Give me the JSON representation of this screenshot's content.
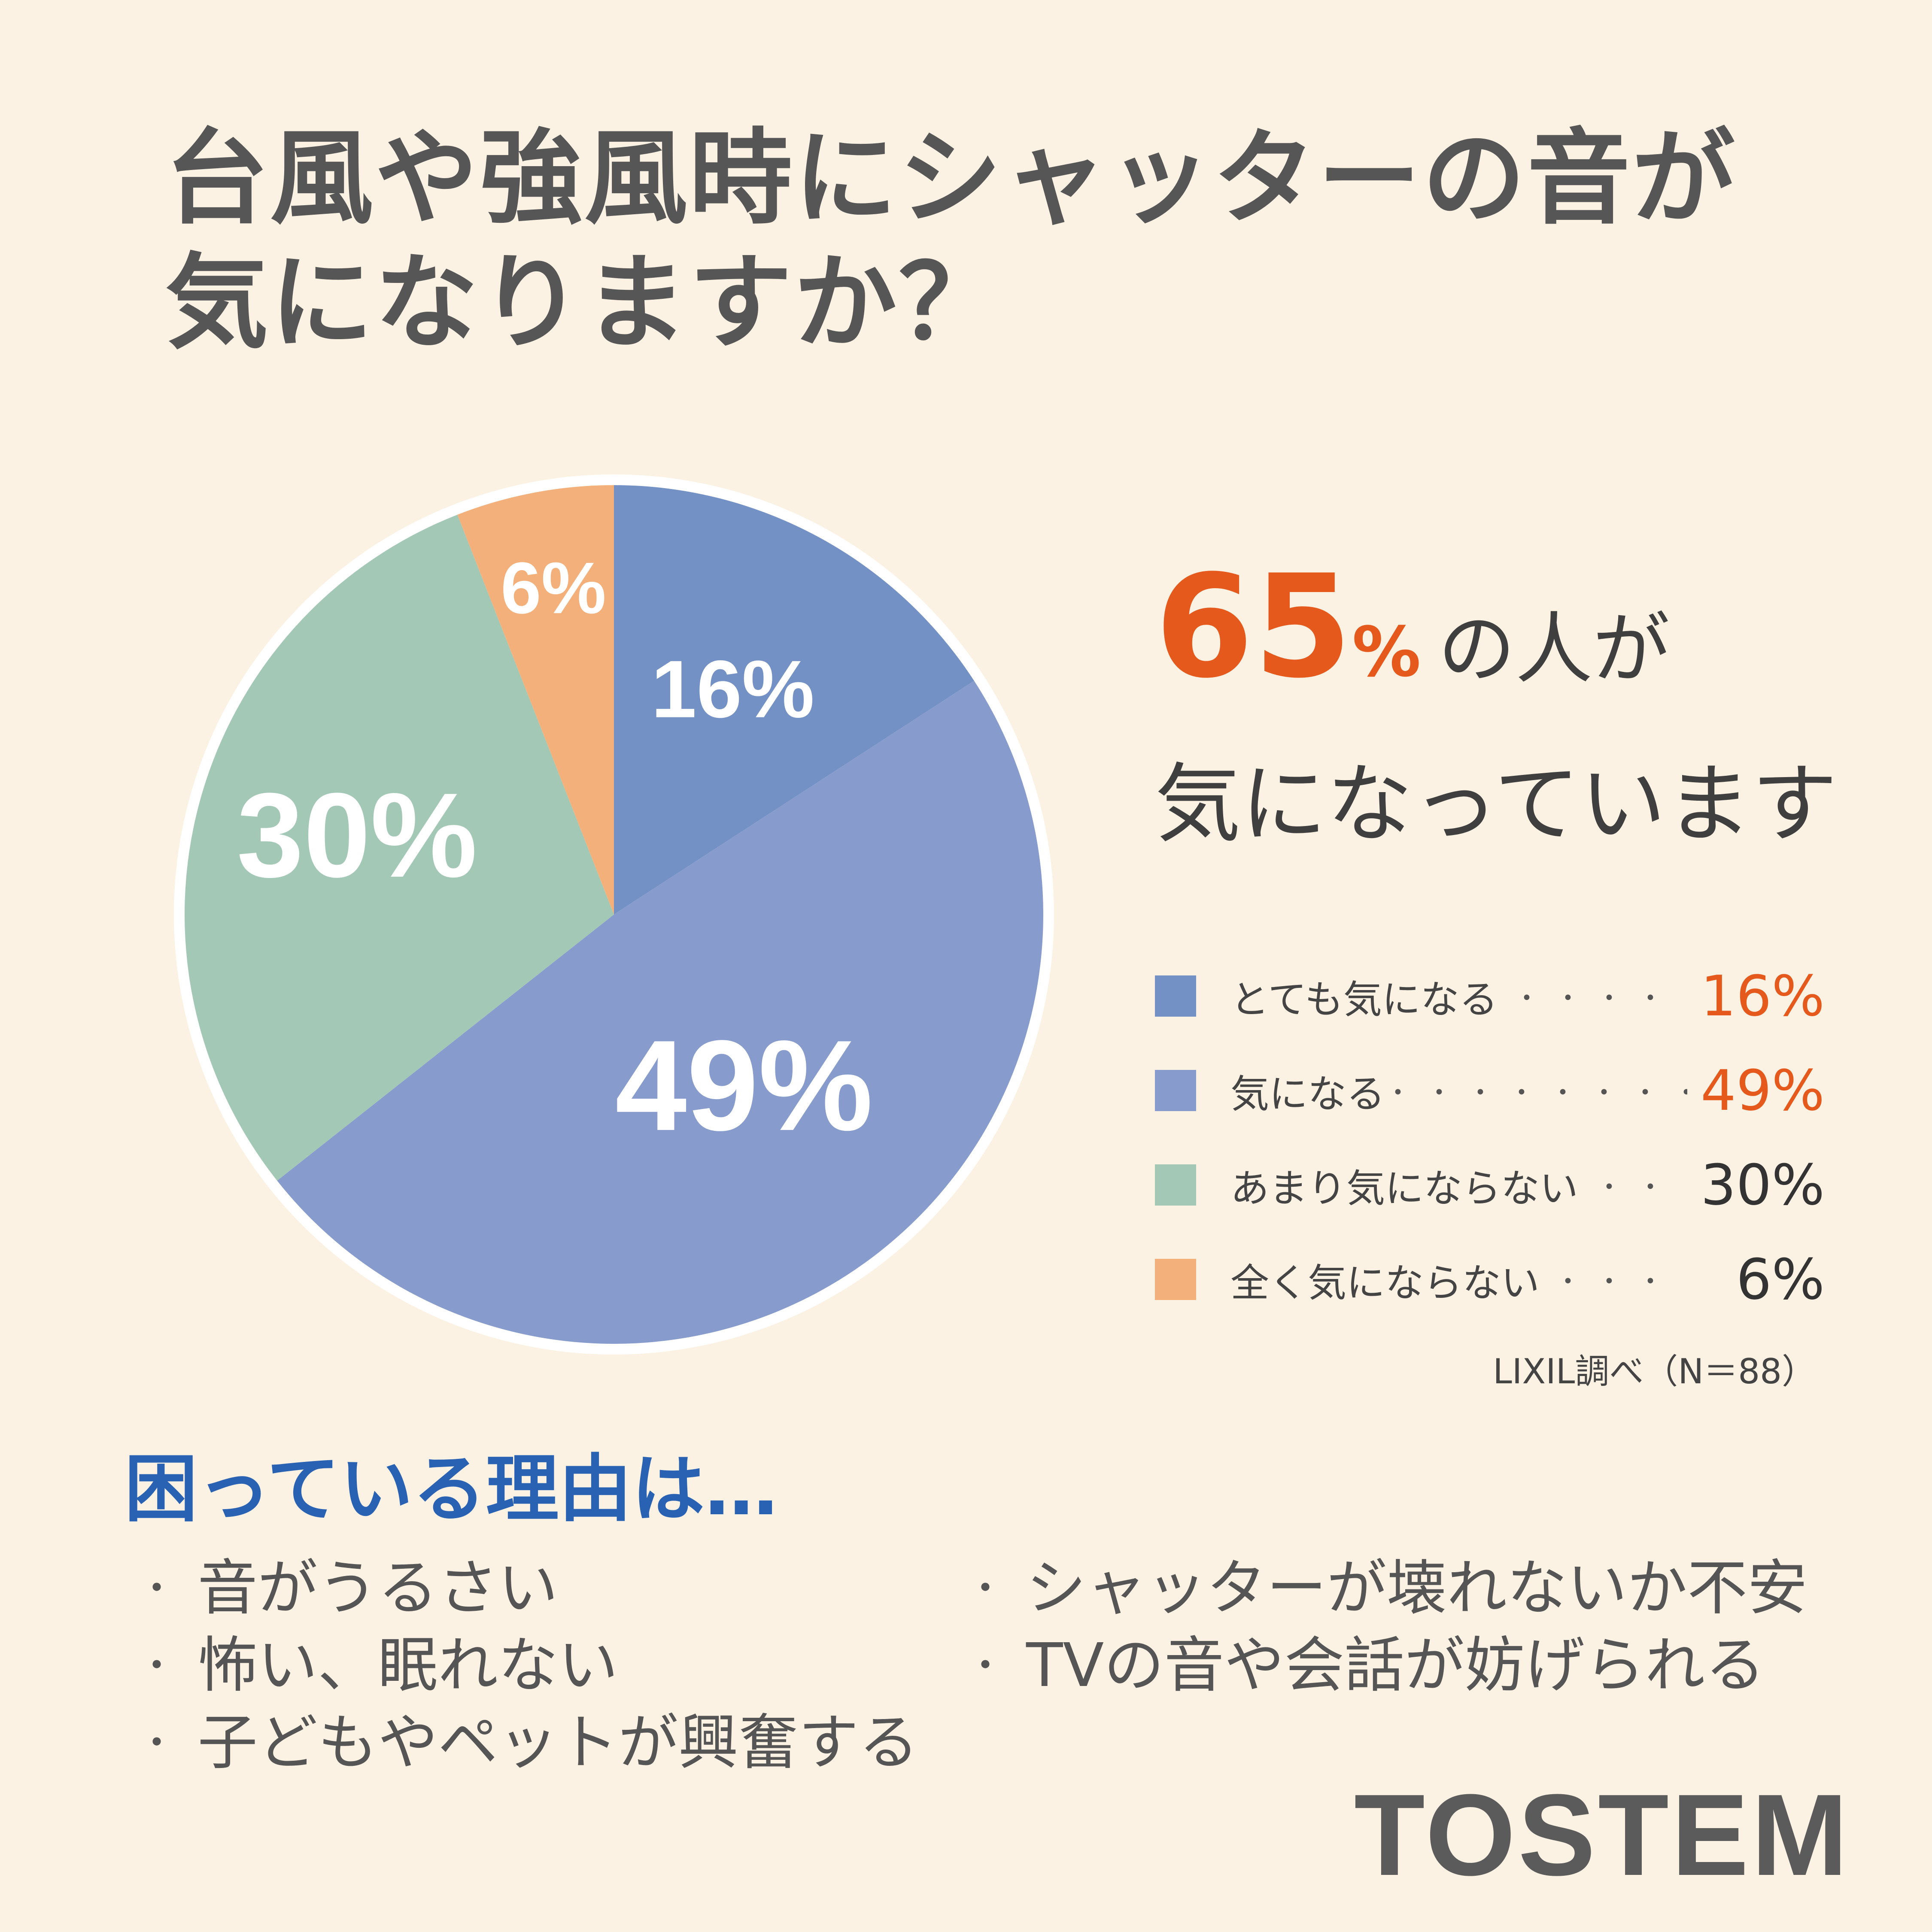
{
  "title": {
    "line1": "台風や強風時にシャッターの音が",
    "line2": "気になりますか？"
  },
  "headline": {
    "value": "65",
    "unit": "%",
    "rest1": "の人が",
    "rest2": "気になっています"
  },
  "chart_data": {
    "type": "pie",
    "slices": [
      {
        "label": "とても気になる",
        "value": 16,
        "display": "16%",
        "color": "#7491c5"
      },
      {
        "label": "気になる",
        "value": 49,
        "display": "49%",
        "color": "#879ccc"
      },
      {
        "label": "あまり気にならない",
        "value": 30,
        "display": "30%",
        "color": "#a3c8b6"
      },
      {
        "label": "全く気にならない",
        "value": 6,
        "display": "6%",
        "color": "#f3b07a"
      }
    ],
    "legend_placement": "right"
  },
  "legend_dots": {
    "0": "・・・・",
    "1": "・・・・・・・・",
    "2": "・・",
    "3": "・・・"
  },
  "source": "LIXIL調べ（N＝88）",
  "reasons": {
    "title": "困っている理由は…",
    "left": [
      "音がうるさい",
      "怖い、眠れない",
      "子どもやペットが興奮する"
    ],
    "right": [
      "シャッターが壊れないか不安",
      "TVの音や会話が妨げられる"
    ],
    "bullet": "・"
  },
  "logo": "TOSTEM"
}
